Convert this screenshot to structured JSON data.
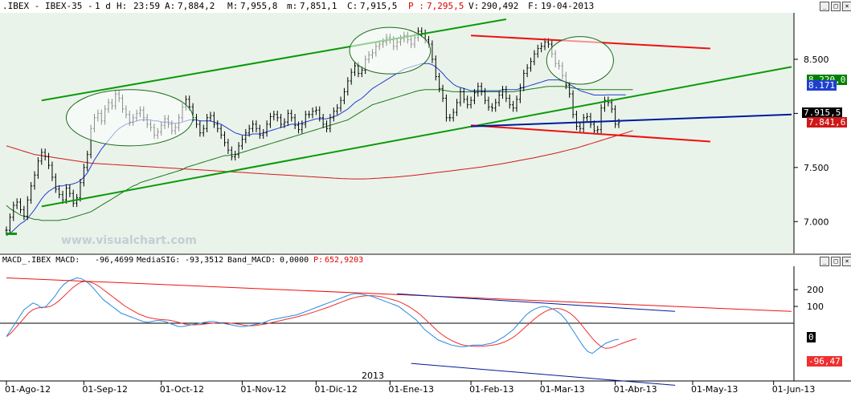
{
  "header": {
    "symbol": ".IBEX - IBEX-35 -",
    "period": "1 d",
    "hour_label": "H:",
    "hour": "23:59",
    "open_label": "A:",
    "open": "7,884,2",
    "high_label": "M:",
    "high": "7,955,8",
    "low_label": "m:",
    "low": "7,851,1",
    "close_label": "C:",
    "close": "7,915,5",
    "p_label": "P :",
    "p": "7,295,5",
    "vol_label": "V:",
    "vol": "290,492",
    "date_label": "F:",
    "date": "19-04-2013"
  },
  "macd_header": {
    "name": "MACD_.IBEX MACD:",
    "macd": "-96,4699",
    "sig_label": "MediaSIG:",
    "sig": "-93,3512",
    "band_label": "Band_MACD:",
    "band": "0,0000",
    "p_label": "P:",
    "p": "652,9203"
  },
  "watermark": "www.visualchart.com",
  "year_label": "2013",
  "badges": {
    "price_close": "7.915,5",
    "ma_blue": "8.171",
    "ma_green": "8.220,0",
    "ma_red": "7.841,6",
    "macd_zero": "0",
    "macd_value": "-96,47"
  },
  "colors": {
    "candles": "#000000",
    "ma_short": "#1f3fd0",
    "ma_mid": "#1a7a1a",
    "ma_long": "#d01818",
    "trend_green": "#0a9a0a",
    "trend_red": "#ee1111",
    "trend_blue": "#001a9a",
    "macd_line": "#2a8ae0",
    "signal_line": "#ee3030",
    "price_bg": "#eaf3ea",
    "macd_bg": "#ffffff"
  },
  "chart_data": {
    "type": "line",
    "price": {
      "ylim": [
        6750,
        8900
      ],
      "yticks": [
        "8.500",
        "8.000",
        "7.500",
        "7.000"
      ],
      "ytick_values": [
        8500,
        8000,
        7500,
        7000
      ],
      "close": [
        6920,
        7040,
        7150,
        7180,
        7110,
        7050,
        7200,
        7330,
        7430,
        7560,
        7640,
        7600,
        7520,
        7410,
        7300,
        7250,
        7200,
        7310,
        7260,
        7170,
        7220,
        7360,
        7500,
        7620,
        7860,
        7960,
        8000,
        7930,
        8040,
        8100,
        8070,
        8180,
        8140,
        8040,
        7990,
        7920,
        7960,
        8000,
        8030,
        7960,
        7900,
        7870,
        7800,
        7830,
        7890,
        7950,
        7900,
        7840,
        7870,
        7960,
        8060,
        8130,
        8060,
        7960,
        7900,
        7820,
        7860,
        7960,
        7980,
        7900,
        7860,
        7800,
        7730,
        7660,
        7600,
        7620,
        7700,
        7760,
        7820,
        7860,
        7900,
        7860,
        7800,
        7820,
        7900,
        7970,
        7990,
        7960,
        7900,
        7920,
        8000,
        7960,
        7890,
        7850,
        7900,
        7990,
        7990,
        8020,
        8030,
        7960,
        7900,
        7860,
        7960,
        8020,
        8050,
        8120,
        8200,
        8300,
        8380,
        8440,
        8370,
        8400,
        8500,
        8540,
        8560,
        8620,
        8640,
        8660,
        8700,
        8680,
        8620,
        8660,
        8690,
        8720,
        8680,
        8640,
        8700,
        8760,
        8740,
        8680,
        8640,
        8500,
        8340,
        8230,
        8140,
        7960,
        7960,
        8010,
        8100,
        8200,
        8130,
        8080,
        8120,
        8190,
        8250,
        8200,
        8120,
        8060,
        8050,
        8100,
        8170,
        8220,
        8140,
        8080,
        8050,
        8130,
        8240,
        8370,
        8420,
        8480,
        8550,
        8600,
        8620,
        8660,
        8640,
        8550,
        8460,
        8440,
        8350,
        8260,
        8180,
        7990,
        7880,
        7860,
        7960,
        7970,
        7900,
        7840,
        7850,
        8050,
        8120,
        8100,
        8040,
        7900,
        7916
      ],
      "ma_short": [
        6870,
        6890,
        6920,
        6950,
        6980,
        7000,
        7030,
        7070,
        7110,
        7160,
        7210,
        7250,
        7280,
        7300,
        7320,
        7330,
        7330,
        7340,
        7340,
        7350,
        7360,
        7380,
        7410,
        7450,
        7510,
        7570,
        7620,
        7670,
        7710,
        7750,
        7790,
        7830,
        7860,
        7880,
        7900,
        7910,
        7920,
        7930,
        7940,
        7940,
        7940,
        7940,
        7930,
        7930,
        7920,
        7920,
        7920,
        7910,
        7910,
        7910,
        7920,
        7930,
        7940,
        7940,
        7940,
        7930,
        7930,
        7930,
        7930,
        7920,
        7910,
        7900,
        7880,
        7860,
        7840,
        7820,
        7810,
        7800,
        7800,
        7800,
        7810,
        7810,
        7810,
        7820,
        7830,
        7840,
        7850,
        7860,
        7870,
        7880,
        7890,
        7900,
        7900,
        7900,
        7910,
        7920,
        7930,
        7940,
        7950,
        7950,
        7950,
        7950,
        7960,
        7970,
        7980,
        8000,
        8020,
        8040,
        8070,
        8100,
        8120,
        8140,
        8170,
        8200,
        8230,
        8250,
        8270,
        8290,
        8310,
        8330,
        8350,
        8370,
        8390,
        8410,
        8420,
        8430,
        8440,
        8450,
        8460,
        8460,
        8460,
        8450,
        8430,
        8400,
        8370,
        8330,
        8300,
        8270,
        8250,
        8240,
        8230,
        8220,
        8210,
        8210,
        8210,
        8210,
        8210,
        8210,
        8210,
        8210,
        8210,
        8220,
        8220,
        8220,
        8220,
        8220,
        8230,
        8240,
        8250,
        8260,
        8270,
        8280,
        8290,
        8300,
        8310,
        8310,
        8310,
        8310,
        8300,
        8290,
        8270,
        8250,
        8230,
        8210,
        8200,
        8190,
        8180,
        8170,
        8170,
        8170,
        8170,
        8171,
        8171,
        8171,
        8171,
        8171,
        8171
      ],
      "ma_mid": [
        7150,
        7120,
        7100,
        7080,
        7060,
        7050,
        7040,
        7030,
        7020,
        7020,
        7010,
        7010,
        7010,
        7010,
        7010,
        7010,
        7020,
        7020,
        7030,
        7040,
        7050,
        7060,
        7070,
        7080,
        7090,
        7110,
        7130,
        7150,
        7170,
        7190,
        7210,
        7230,
        7250,
        7270,
        7290,
        7310,
        7330,
        7340,
        7360,
        7370,
        7380,
        7390,
        7400,
        7410,
        7420,
        7430,
        7440,
        7450,
        7460,
        7470,
        7480,
        7500,
        7510,
        7520,
        7530,
        7540,
        7550,
        7560,
        7570,
        7580,
        7590,
        7600,
        7610,
        7610,
        7620,
        7620,
        7630,
        7640,
        7650,
        7660,
        7670,
        7680,
        7690,
        7700,
        7710,
        7720,
        7730,
        7740,
        7750,
        7760,
        7770,
        7780,
        7790,
        7800,
        7810,
        7820,
        7830,
        7840,
        7850,
        7860,
        7870,
        7880,
        7890,
        7900,
        7910,
        7920,
        7930,
        7940,
        7960,
        7980,
        8000,
        8020,
        8040,
        8060,
        8080,
        8090,
        8100,
        8110,
        8120,
        8130,
        8140,
        8150,
        8160,
        8170,
        8180,
        8190,
        8200,
        8210,
        8215,
        8220,
        8220,
        8220,
        8220,
        8220,
        8215,
        8210,
        8205,
        8200,
        8200,
        8200,
        8200,
        8200,
        8200,
        8200,
        8200,
        8200,
        8200,
        8200,
        8200,
        8200,
        8200,
        8200,
        8200,
        8200,
        8200,
        8205,
        8210,
        8215,
        8220,
        8225,
        8230,
        8235,
        8240,
        8245,
        8250,
        8250,
        8250,
        8250,
        8250,
        8245,
        8240,
        8235,
        8230,
        8225,
        8220,
        8220,
        8220,
        8220,
        8220,
        8220,
        8220,
        8220,
        8220,
        8220,
        8220,
        8220,
        8220,
        8220,
        8220
      ],
      "ma_long": [
        7700,
        7690,
        7680,
        7670,
        7660,
        7650,
        7640,
        7630,
        7620,
        7615,
        7610,
        7605,
        7600,
        7595,
        7590,
        7585,
        7580,
        7575,
        7570,
        7565,
        7560,
        7555,
        7550,
        7545,
        7540,
        7538,
        7536,
        7534,
        7532,
        7530,
        7528,
        7526,
        7524,
        7522,
        7520,
        7518,
        7516,
        7514,
        7512,
        7510,
        7508,
        7506,
        7504,
        7502,
        7500,
        7498,
        7496,
        7494,
        7492,
        7490,
        7488,
        7486,
        7484,
        7482,
        7480,
        7478,
        7476,
        7474,
        7472,
        7470,
        7468,
        7466,
        7464,
        7462,
        7460,
        7458,
        7456,
        7454,
        7452,
        7450,
        7448,
        7446,
        7444,
        7442,
        7440,
        7438,
        7436,
        7434,
        7432,
        7430,
        7428,
        7426,
        7424,
        7422,
        7420,
        7418,
        7416,
        7414,
        7412,
        7410,
        7408,
        7406,
        7404,
        7402,
        7400,
        7398,
        7397,
        7396,
        7395,
        7394,
        7394,
        7394,
        7395,
        7396,
        7398,
        7400,
        7402,
        7404,
        7406,
        7408,
        7410,
        7413,
        7416,
        7419,
        7422,
        7425,
        7428,
        7432,
        7436,
        7440,
        7444,
        7448,
        7452,
        7456,
        7460,
        7464,
        7468,
        7472,
        7476,
        7480,
        7484,
        7488,
        7492,
        7496,
        7500,
        7505,
        7510,
        7515,
        7520,
        7525,
        7530,
        7536,
        7542,
        7548,
        7554,
        7560,
        7566,
        7572,
        7578,
        7584,
        7590,
        7597,
        7604,
        7611,
        7618,
        7625,
        7632,
        7640,
        7648,
        7656,
        7664,
        7672,
        7680,
        7690,
        7700,
        7710,
        7720,
        7730,
        7740,
        7750,
        7760,
        7770,
        7780,
        7790,
        7800,
        7810,
        7820,
        7830,
        7841
      ],
      "trendlines": [
        {
          "color": "trend_green",
          "from": [
            10,
            8120
          ],
          "to": [
            142,
            8870
          ]
        },
        {
          "color": "trend_green",
          "from": [
            10,
            7140
          ],
          "to": [
            245,
            8430
          ]
        },
        {
          "color": "trend_red",
          "from": [
            132,
            8720
          ],
          "to": [
            200,
            8600
          ]
        },
        {
          "color": "trend_red",
          "from": [
            132,
            7890
          ],
          "to": [
            200,
            7740
          ]
        },
        {
          "color": "trend_blue",
          "from": [
            132,
            7880
          ],
          "to": [
            245,
            7990
          ]
        }
      ],
      "ellipses": [
        {
          "center": [
            35,
            7960
          ],
          "rx": 18,
          "ry": 260
        },
        {
          "center": [
            109,
            8580
          ],
          "rx": 11.5,
          "ry": 215
        },
        {
          "center": [
            163,
            8490
          ],
          "rx": 9.5,
          "ry": 220
        }
      ]
    },
    "macd": {
      "ylim": [
        -330,
        320
      ],
      "yticks": [
        "200",
        "100"
      ],
      "ytick_values": [
        200,
        100
      ],
      "zero": 0,
      "macd": [
        -80,
        -40,
        0,
        40,
        80,
        100,
        120,
        110,
        90,
        100,
        130,
        160,
        200,
        230,
        250,
        260,
        270,
        265,
        250,
        230,
        200,
        170,
        140,
        120,
        100,
        80,
        60,
        50,
        40,
        30,
        20,
        10,
        5,
        10,
        15,
        15,
        10,
        0,
        -10,
        -20,
        -20,
        -15,
        -10,
        -5,
        0,
        5,
        10,
        10,
        5,
        0,
        -5,
        -10,
        -15,
        -20,
        -20,
        -15,
        -10,
        -5,
        0,
        10,
        20,
        25,
        30,
        35,
        40,
        45,
        50,
        60,
        70,
        80,
        90,
        100,
        110,
        120,
        130,
        140,
        150,
        160,
        170,
        175,
        175,
        170,
        165,
        160,
        150,
        140,
        130,
        120,
        110,
        100,
        80,
        60,
        40,
        20,
        -10,
        -40,
        -60,
        -80,
        -100,
        -110,
        -120,
        -130,
        -135,
        -140,
        -140,
        -135,
        -130,
        -130,
        -130,
        -125,
        -120,
        -110,
        -95,
        -80,
        -60,
        -40,
        -10,
        20,
        50,
        70,
        85,
        95,
        100,
        95,
        85,
        70,
        50,
        20,
        -20,
        -60,
        -100,
        -140,
        -170,
        -180,
        -160,
        -140,
        -120,
        -110,
        -100,
        -96
      ],
      "signal": [
        -80,
        -60,
        -30,
        0,
        30,
        60,
        80,
        90,
        95,
        95,
        100,
        115,
        135,
        160,
        185,
        210,
        230,
        245,
        250,
        245,
        235,
        220,
        200,
        180,
        160,
        140,
        120,
        100,
        85,
        70,
        55,
        45,
        35,
        30,
        25,
        22,
        20,
        18,
        12,
        5,
        -2,
        -8,
        -10,
        -10,
        -8,
        -5,
        -2,
        0,
        2,
        3,
        2,
        0,
        -3,
        -7,
        -12,
        -15,
        -15,
        -12,
        -8,
        -4,
        2,
        8,
        14,
        20,
        26,
        32,
        38,
        45,
        52,
        60,
        68,
        77,
        86,
        95,
        105,
        115,
        125,
        135,
        145,
        152,
        158,
        162,
        164,
        164,
        162,
        158,
        152,
        145,
        138,
        130,
        118,
        104,
        88,
        70,
        50,
        25,
        0,
        -25,
        -50,
        -70,
        -88,
        -102,
        -115,
        -125,
        -132,
        -136,
        -138,
        -138,
        -137,
        -135,
        -132,
        -128,
        -122,
        -112,
        -100,
        -85,
        -65,
        -42,
        -18,
        5,
        28,
        48,
        65,
        78,
        86,
        88,
        84,
        74,
        58,
        35,
        8,
        -25,
        -58,
        -90,
        -118,
        -140,
        -150,
        -148,
        -140,
        -128,
        -118,
        -108,
        -100,
        -93
      ],
      "trendlines": [
        {
          "color": "trend_red",
          "from": [
            0,
            270
          ],
          "to": [
            235,
            70
          ]
        },
        {
          "color": "trend_blue",
          "from": [
            111,
            175
          ],
          "to": [
            190,
            70
          ]
        },
        {
          "color": "trend_blue",
          "from": [
            115,
            -240
          ],
          "to": [
            190,
            -370
          ]
        }
      ]
    },
    "x_axis": {
      "labels": [
        "01-Ago-12",
        "01-Sep-12",
        "01-Oct-12",
        "01-Nov-12",
        "01-Dic-12",
        "01-Ene-13",
        "01-Feb-13",
        "01-Mar-13",
        "01-Abr-13",
        "01-May-13",
        "01-Jun-13"
      ],
      "label_index": [
        0,
        22,
        44,
        67,
        88,
        109,
        132,
        152,
        173,
        195,
        218
      ]
    }
  }
}
